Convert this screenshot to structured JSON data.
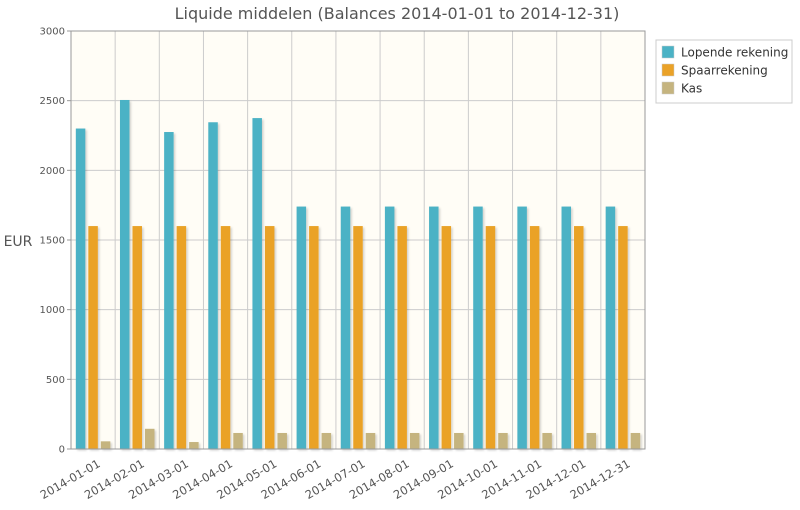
{
  "chart_data": {
    "type": "bar",
    "title": "Liquide middelen (Balances 2014-01-01 to 2014-12-31)",
    "xlabel": "",
    "ylabel": "EUR",
    "ylim": [
      0,
      3000
    ],
    "yticks": [
      0,
      500,
      1000,
      1500,
      2000,
      2500,
      3000
    ],
    "grid": true,
    "legend_position": "top-right",
    "categories": [
      "2014-01-01",
      "2014-02-01",
      "2014-03-01",
      "2014-04-01",
      "2014-05-01",
      "2014-06-01",
      "2014-07-01",
      "2014-08-01",
      "2014-09-01",
      "2014-10-01",
      "2014-11-01",
      "2014-12-01",
      "2014-12-31"
    ],
    "series": [
      {
        "name": "Lopende rekening",
        "color": "#4bb2c5",
        "values": [
          2300,
          2505,
          2275,
          2345,
          2375,
          1740,
          1740,
          1740,
          1740,
          1740,
          1740,
          1740,
          1740
        ]
      },
      {
        "name": "Spaarrekening",
        "color": "#eaa228",
        "values": [
          1600,
          1600,
          1600,
          1600,
          1600,
          1600,
          1600,
          1600,
          1600,
          1600,
          1600,
          1600,
          1600
        ]
      },
      {
        "name": "Kas",
        "color": "#c5b47f",
        "values": [
          55,
          145,
          50,
          115,
          115,
          115,
          115,
          115,
          115,
          115,
          115,
          115,
          115
        ]
      }
    ]
  }
}
